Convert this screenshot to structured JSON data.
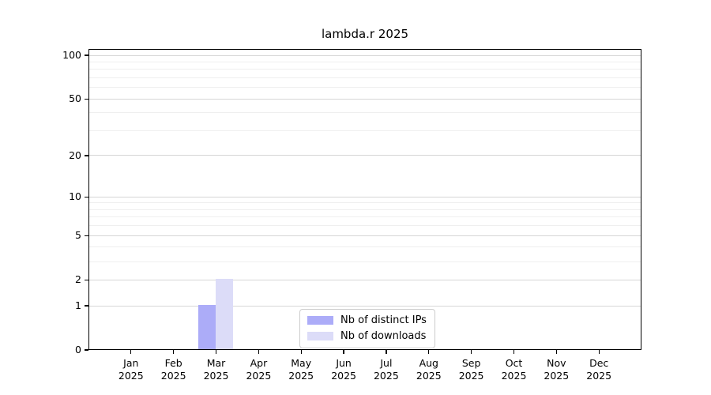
{
  "figure": {
    "title": "lambda.r 2025",
    "background_color": "#ffffff"
  },
  "chart_data": {
    "type": "bar",
    "title": "lambda.r 2025",
    "x_categories": [
      "Jan",
      "Feb",
      "Mar",
      "Apr",
      "May",
      "Jun",
      "Jul",
      "Aug",
      "Sep",
      "Oct",
      "Nov",
      "Dec"
    ],
    "x_year_sublabel": "2025",
    "series": [
      {
        "name": "Nb of distinct IPs",
        "color": "#acacf8",
        "values": [
          0,
          0,
          1,
          0,
          0,
          0,
          0,
          0,
          0,
          0,
          0,
          0
        ]
      },
      {
        "name": "Nb of downloads",
        "color": "#dcdcf8",
        "values": [
          0,
          0,
          2,
          0,
          0,
          0,
          0,
          0,
          0,
          0,
          0,
          0
        ]
      }
    ],
    "y_scale": "log1p",
    "y_ticks": [
      0,
      1,
      2,
      5,
      10,
      20,
      50,
      100
    ],
    "y_minor_gridlines": [
      3,
      4,
      6,
      7,
      8,
      9,
      30,
      40,
      60,
      70,
      80,
      90
    ],
    "ylim": [
      0,
      111
    ],
    "xlabel": "",
    "ylabel": "",
    "grid": true,
    "legend": {
      "position": "lower center",
      "entries": [
        "Nb of distinct IPs",
        "Nb of downloads"
      ]
    },
    "colors": {
      "major_grid": "#d6d6d6",
      "minor_grid": "#efefef",
      "spine": "#000000",
      "text": "#000000"
    }
  }
}
